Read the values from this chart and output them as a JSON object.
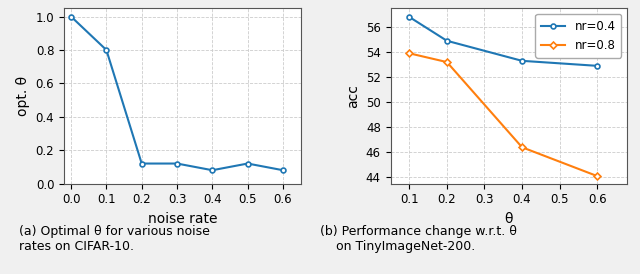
{
  "left": {
    "x": [
      0.0,
      0.1,
      0.2,
      0.3,
      0.4,
      0.5,
      0.6
    ],
    "y": [
      1.0,
      0.8,
      0.12,
      0.12,
      0.08,
      0.12,
      0.08
    ],
    "color": "#1f77b4",
    "xlabel": "noise rate",
    "ylabel": "opt. θ",
    "xlim": [
      -0.02,
      0.65
    ],
    "ylim": [
      0.0,
      1.05
    ],
    "xticks": [
      0.0,
      0.1,
      0.2,
      0.3,
      0.4,
      0.5,
      0.6
    ],
    "yticks": [
      0.0,
      0.2,
      0.4,
      0.6,
      0.8,
      1.0
    ],
    "caption_line1": "(a) Optimal θ for various noise",
    "caption_line2": "rates on CIFAR-10."
  },
  "right": {
    "nr04": {
      "x": [
        0.1,
        0.2,
        0.4,
        0.6
      ],
      "y": [
        56.8,
        54.9,
        53.3,
        52.9
      ],
      "color": "#1f77b4",
      "label": "nr=0.4"
    },
    "nr08": {
      "x": [
        0.1,
        0.2,
        0.4,
        0.6
      ],
      "y": [
        53.9,
        53.2,
        46.4,
        44.1
      ],
      "color": "#ff7f0e",
      "label": "nr=0.8"
    },
    "xlabel": "θ",
    "ylabel": "acc",
    "xlim": [
      0.05,
      0.68
    ],
    "ylim": [
      43.5,
      57.5
    ],
    "xticks": [
      0.1,
      0.2,
      0.3,
      0.4,
      0.5,
      0.6
    ],
    "yticks": [
      44,
      46,
      48,
      50,
      52,
      54,
      56
    ],
    "caption_line1": "(b) Performance change w.r.t. θ",
    "caption_line2": "    on TinyImageNet-200."
  },
  "fig_width": 6.4,
  "fig_height": 2.74,
  "dpi": 100,
  "bg_color": "#f0f0f0"
}
